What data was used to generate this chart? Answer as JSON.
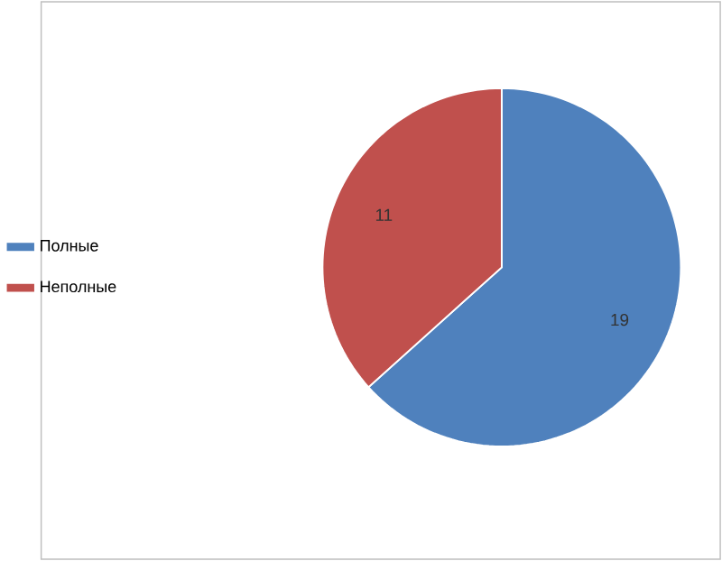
{
  "chart_data": {
    "type": "pie",
    "categories": [
      "Полные",
      "Неполные"
    ],
    "values": [
      19,
      11
    ],
    "colors": [
      "#4f81bd",
      "#c0504d"
    ],
    "data_labels": true,
    "legend": "left"
  }
}
